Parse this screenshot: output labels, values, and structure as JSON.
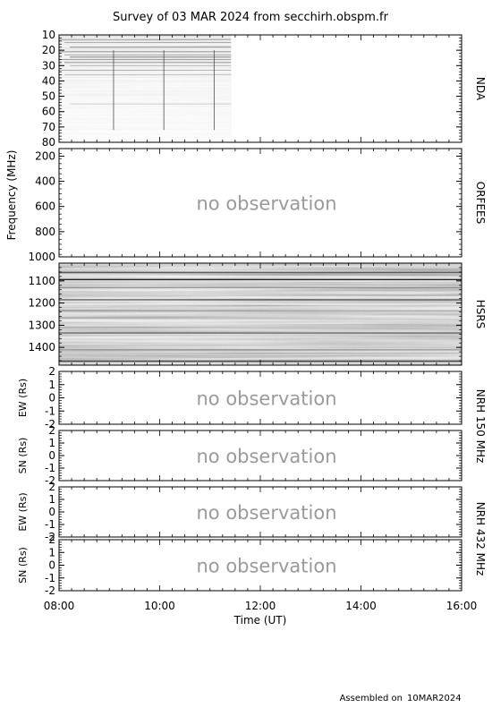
{
  "chart_data": {
    "type": "heatmap",
    "title": "Survey of 03 MAR 2024 from secchirh.obspm.fr",
    "xlabel": "Time (UT)",
    "xlim": [
      "08:00",
      "16:00"
    ],
    "x_ticks": [
      "08:00",
      "10:00",
      "12:00",
      "14:00",
      "16:00"
    ],
    "shared_ylabel": "Frequency (MHz)",
    "panels": [
      {
        "id": "nda",
        "instrument": "NDA",
        "yunit": "MHz",
        "ylim": [
          10,
          80
        ],
        "inverted": true,
        "y_ticks": [
          10,
          20,
          30,
          40,
          50,
          60,
          70,
          80
        ],
        "status": "observed",
        "observation_end": "11:25",
        "burst_times": [
          "09:05",
          "10:05",
          "11:05"
        ]
      },
      {
        "id": "orfees",
        "instrument": "ORFEES",
        "yunit": "MHz",
        "ylim": [
          140,
          1000
        ],
        "inverted": true,
        "y_ticks": [
          200,
          400,
          600,
          800,
          1000
        ],
        "status": "no observation"
      },
      {
        "id": "hsrs",
        "instrument": "HSRS",
        "yunit": "MHz",
        "ylim": [
          1020,
          1480
        ],
        "inverted": true,
        "y_ticks": [
          1100,
          1200,
          1300,
          1400
        ],
        "status": "observed",
        "observation_start": "08:00",
        "observation_end": "16:00"
      },
      {
        "id": "nrh150_ew",
        "instrument": "NRH 150 MHz",
        "ylabel": "EW (Rs)",
        "ylim": [
          -2,
          2
        ],
        "y_ticks": [
          2,
          1,
          0,
          -1,
          -2
        ],
        "status": "no observation"
      },
      {
        "id": "nrh150_sn",
        "instrument": "NRH 150 MHz",
        "ylabel": "SN (Rs)",
        "ylim": [
          -2,
          2
        ],
        "y_ticks": [
          2,
          1,
          0,
          -1,
          -2
        ],
        "status": "no observation"
      },
      {
        "id": "nrh432_ew",
        "instrument": "NRH 432 MHz",
        "ylabel": "EW (Rs)",
        "ylim": [
          -2,
          2
        ],
        "y_ticks": [
          2,
          1,
          0,
          -1,
          -2
        ],
        "status": "no observation"
      },
      {
        "id": "nrh432_sn",
        "instrument": "NRH 432 MHz",
        "ylabel": "SN (Rs)",
        "ylim": [
          -2,
          2
        ],
        "y_ticks": [
          2,
          1,
          0,
          -1,
          -2
        ],
        "status": "no observation"
      }
    ],
    "right_labels": [
      "NDA",
      "ORFEES",
      "HSRS",
      "NRH 150 MHz",
      "NRH 432 MHz"
    ]
  },
  "footer": {
    "assembled_label": "Assembled on",
    "assembled_date": "10MAR2024"
  }
}
